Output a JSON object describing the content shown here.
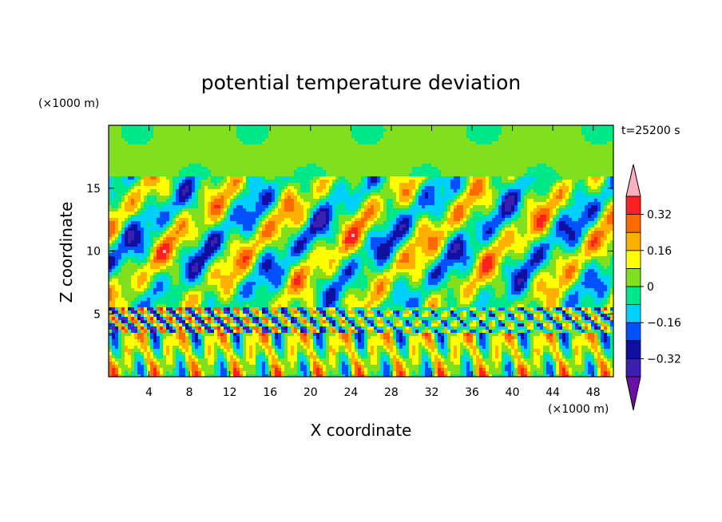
{
  "chart_data": {
    "type": "heatmap",
    "title": "potential temperature deviation",
    "xlabel": "X coordinate",
    "ylabel": "Z coordinate",
    "x_unit": "(×1000 m)",
    "z_unit": "(×1000 m)",
    "time_label": "t=25200 s",
    "xlim": [
      0,
      50
    ],
    "zlim": [
      0,
      20
    ],
    "x_ticks": [
      "4",
      "8",
      "12",
      "16",
      "20",
      "24",
      "28",
      "32",
      "36",
      "40",
      "44",
      "48"
    ],
    "z_ticks": [
      "5",
      "10",
      "15"
    ],
    "colorbar": {
      "levels": [
        -0.4,
        -0.32,
        -0.24,
        -0.16,
        -0.08,
        0,
        0.08,
        0.16,
        0.24,
        0.32,
        0.4
      ],
      "labels": [
        "−0.32",
        "−0.16",
        "0",
        "0.16",
        "0.32"
      ],
      "colors": [
        "#6a0fa8",
        "#3a1fb0",
        "#1010a0",
        "#0050ff",
        "#00d0ff",
        "#00e88a",
        "#80e020",
        "#ffff00",
        "#ffb000",
        "#ff6a00",
        "#ff2020",
        "#ffb0c0"
      ]
    }
  }
}
